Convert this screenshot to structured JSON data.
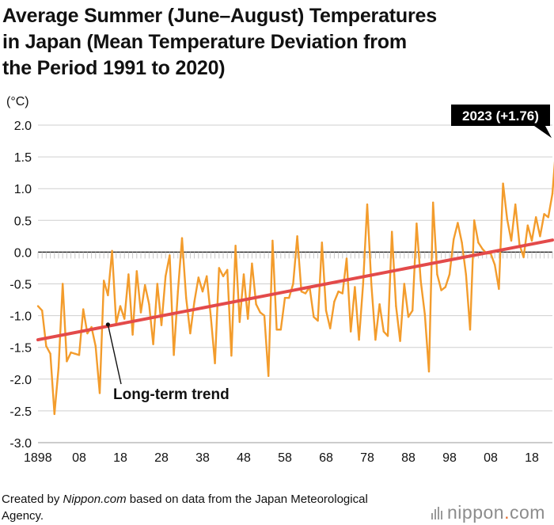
{
  "title": {
    "line1": "Average Summer (June–August) Temperatures",
    "line2": "in Japan (Mean Temperature Deviation from",
    "line3": "the Period 1991 to 2020)"
  },
  "footer": {
    "prefix": "Created by ",
    "site": "Nippon.com",
    "suffix": " based on data from the Japan Meteorological Agency."
  },
  "logo": {
    "name": "nippon",
    "tld": "com"
  },
  "colors": {
    "series": "#f39c2c",
    "trend": "#e34a4a",
    "zero": "#111111",
    "grid": "#cfcfcf",
    "callout_bg": "#000000"
  },
  "chart_data": {
    "type": "line",
    "title": "Average Summer (June–August) Temperatures in Japan (Mean Temperature Deviation from the Period 1991 to 2020)",
    "ylabel": "(°C)",
    "xlabel": "",
    "ylim": [
      -3.0,
      2.0
    ],
    "yticks": [
      2.0,
      1.5,
      1.0,
      0.5,
      0.0,
      -0.5,
      -1.0,
      -1.5,
      -2.0,
      -2.5,
      -3.0
    ],
    "ytick_labels": [
      "2.0",
      "1.5",
      "1.0",
      "0.5",
      "0.0",
      "-0.5",
      "-1.0",
      "-1.5",
      "-2.0",
      "-2.5",
      "-3.0"
    ],
    "xlim": [
      1898,
      2023
    ],
    "xticks": [
      1898,
      1908,
      1918,
      1928,
      1938,
      1948,
      1958,
      1968,
      1978,
      1988,
      1998,
      2008,
      2018
    ],
    "xtick_labels": [
      "1898",
      "08",
      "18",
      "28",
      "38",
      "48",
      "58",
      "68",
      "78",
      "88",
      "98",
      "08",
      "18"
    ],
    "grid": true,
    "series": [
      {
        "name": "Mean temperature deviation",
        "x_start": 1898,
        "values": [
          -0.85,
          -0.92,
          -1.48,
          -1.6,
          -2.55,
          -1.82,
          -0.5,
          -1.72,
          -1.58,
          -1.6,
          -1.62,
          -0.9,
          -1.28,
          -1.18,
          -1.48,
          -2.22,
          -0.45,
          -0.68,
          0.02,
          -1.12,
          -0.85,
          -1.05,
          -0.35,
          -1.3,
          -0.3,
          -0.95,
          -0.52,
          -0.82,
          -1.45,
          -0.5,
          -1.15,
          -0.38,
          -0.05,
          -1.62,
          -0.62,
          0.22,
          -0.72,
          -1.28,
          -0.78,
          -0.4,
          -0.62,
          -0.38,
          -1.02,
          -1.75,
          -0.25,
          -0.38,
          -0.28,
          -1.63,
          0.1,
          -1.1,
          -0.35,
          -1.05,
          -0.18,
          -0.82,
          -0.95,
          -1.0,
          -1.95,
          0.18,
          -1.22,
          -1.22,
          -0.72,
          -0.72,
          -0.5,
          0.25,
          -0.62,
          -0.65,
          -0.55,
          -1.02,
          -1.08,
          0.15,
          -0.92,
          -1.2,
          -0.78,
          -0.62,
          -0.65,
          -0.1,
          -1.25,
          -0.55,
          -1.38,
          -0.5,
          0.75,
          -0.5,
          -1.38,
          -0.82,
          -1.25,
          -1.32,
          0.32,
          -0.85,
          -1.4,
          -0.5,
          -1.02,
          -0.92,
          0.45,
          -0.45,
          -0.98,
          -1.88,
          0.78,
          -0.35,
          -0.6,
          -0.55,
          -0.35,
          0.2,
          0.46,
          0.15,
          -0.35,
          -1.22,
          0.5,
          0.15,
          0.05,
          -0.02,
          -0.02,
          -0.2,
          -0.58,
          1.08,
          0.52,
          0.18,
          0.75,
          0.12,
          -0.08,
          0.42,
          0.18,
          0.55,
          0.25,
          0.6,
          0.55,
          0.92,
          1.76
        ]
      }
    ],
    "trend": {
      "name": "Long-term trend",
      "start": [
        1898,
        -1.38
      ],
      "end": [
        2023,
        0.19
      ]
    },
    "annotations": [
      {
        "text": "2023 (+1.76)",
        "x": 2023,
        "y": 1.76
      },
      {
        "text": "Long-term trend",
        "x": 1915,
        "y": -1.14
      }
    ]
  }
}
